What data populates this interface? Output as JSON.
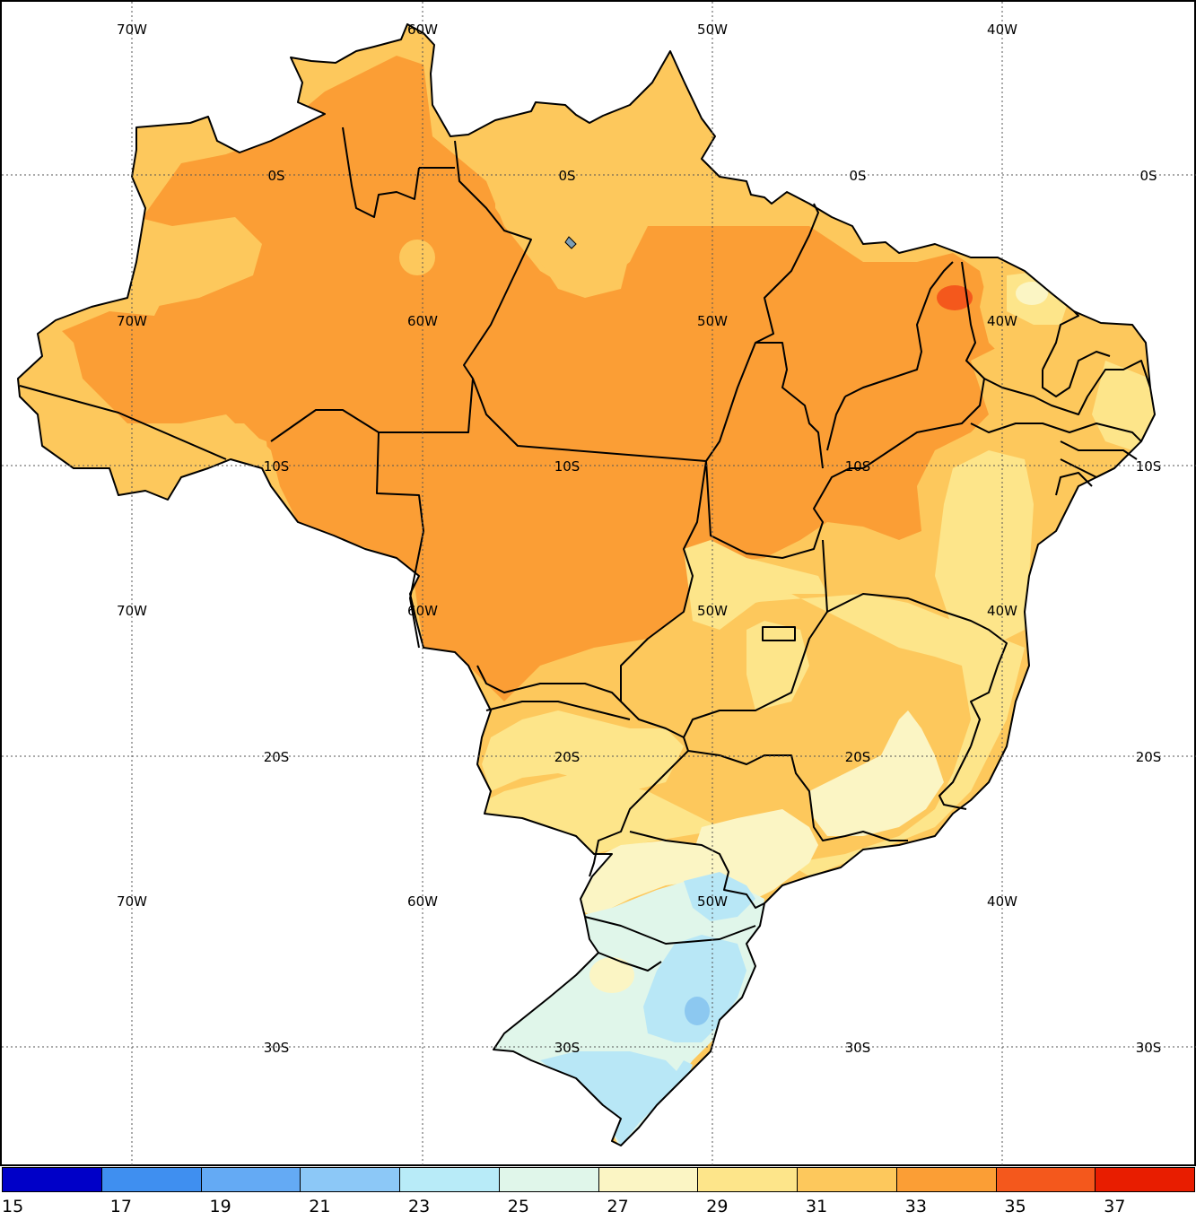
{
  "map": {
    "grid_labels": {
      "longitudes": [
        "70W",
        "60W",
        "50W",
        "40W"
      ],
      "latitudes": [
        "0S",
        "10S",
        "20S",
        "30S"
      ]
    },
    "fill_colors": {
      "c27_29": "#fbf5c4",
      "c29_31": "#fde58a",
      "c31_33": "#fdc85c",
      "c33_35": "#fb9e35",
      "c35_37": "#f4581c",
      "c25_27": "#e0f6ea",
      "c23_25": "#b8e7f6",
      "c21_23": "#8cc8f0",
      "water": "#7d9fb7"
    }
  },
  "colorbar": {
    "labels": [
      "15",
      "17",
      "19",
      "21",
      "23",
      "25",
      "27",
      "29",
      "31",
      "33",
      "35",
      "37"
    ],
    "colors": [
      "#0000c8",
      "#3f8ff0",
      "#64aaf4",
      "#8cc8f7",
      "#b8ebf8",
      "#e0f6ea",
      "#fbf5c4",
      "#fde58a",
      "#fdc85c",
      "#fb9e35",
      "#f4581c",
      "#e81d00"
    ]
  }
}
